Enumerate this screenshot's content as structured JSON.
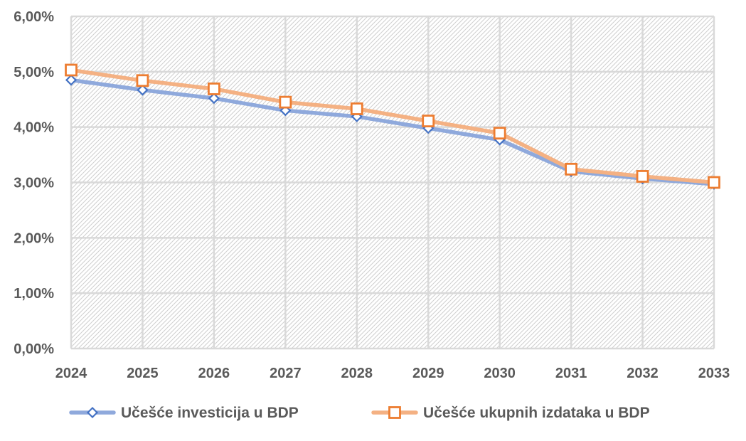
{
  "chart_data": {
    "type": "line",
    "title": "",
    "xlabel": "",
    "ylabel": "",
    "categories": [
      "2024",
      "2025",
      "2026",
      "2027",
      "2028",
      "2029",
      "2030",
      "2031",
      "2032",
      "2033"
    ],
    "ylim": [
      0,
      6
    ],
    "y_ticks": [
      0,
      1,
      2,
      3,
      4,
      5,
      6
    ],
    "y_tick_labels": [
      "0,00%",
      "1,00%",
      "2,00%",
      "3,00%",
      "4,00%",
      "5,00%",
      "6,00%"
    ],
    "grid": true,
    "background": "hatched",
    "legend_position": "bottom",
    "series": [
      {
        "name": "Učešće investicija u BDP",
        "values": [
          4.85,
          4.67,
          4.52,
          4.3,
          4.19,
          3.98,
          3.77,
          3.2,
          3.07,
          2.97
        ],
        "color": "#8fa9dc",
        "marker_color": "#4472c4",
        "marker": "diamond"
      },
      {
        "name": "Učešće ukupnih izdataka u BDP",
        "values": [
          5.03,
          4.84,
          4.69,
          4.45,
          4.33,
          4.11,
          3.89,
          3.24,
          3.11,
          3.0
        ],
        "color": "#f4b183",
        "marker_color": "#ed7d31",
        "marker": "square"
      }
    ]
  }
}
